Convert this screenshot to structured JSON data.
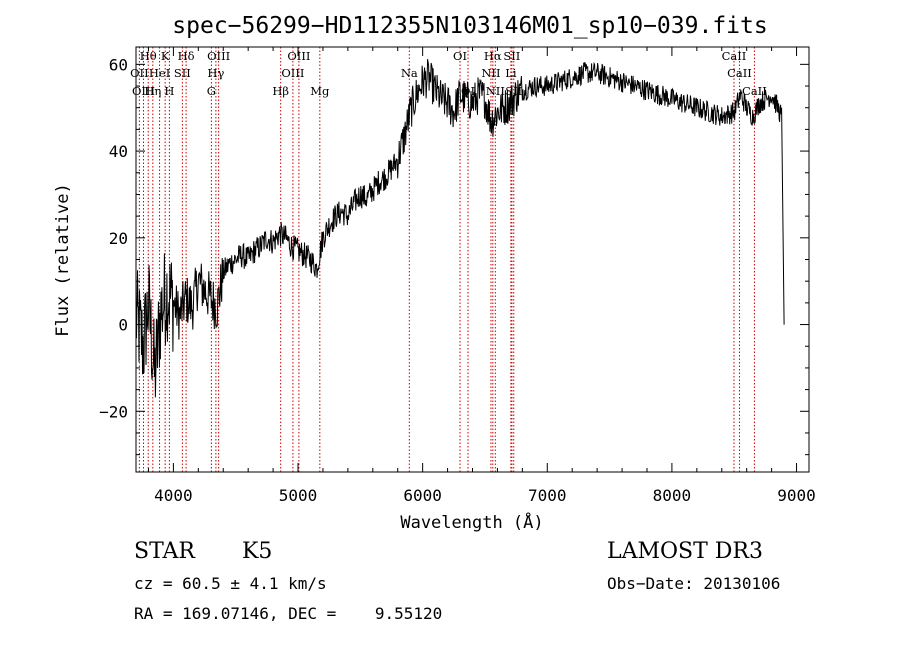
{
  "chart_data": {
    "type": "line",
    "title": "spec−56299−HD112355N103146M01_sp10−039.fits",
    "xlabel": "Wavelength (Å)",
    "ylabel": "Flux (relative)",
    "xlim": [
      3700,
      9100
    ],
    "ylim": [
      -34,
      64
    ],
    "xticks": [
      4000,
      5000,
      6000,
      7000,
      8000,
      9000
    ],
    "xtick_labels": [
      "4000",
      "5000",
      "6000",
      "7000",
      "8000",
      "9000"
    ],
    "yticks": [
      -20,
      0,
      20,
      40,
      60
    ],
    "ytick_labels": [
      "−20",
      "0",
      "20",
      "40",
      "60"
    ],
    "grid": false,
    "series": [
      {
        "x": [
          3700,
          3760,
          3800,
          3850,
          3900,
          3950,
          4000,
          4050,
          4100,
          4150,
          4200,
          4250,
          4300,
          4350,
          4400,
          4450,
          4500,
          4550,
          4600,
          4650,
          4700,
          4750,
          4800,
          4850,
          4900,
          4950,
          5000,
          5050,
          5100,
          5150,
          5200,
          5250,
          5300,
          5350,
          5400,
          5450,
          5500,
          5550,
          5600,
          5650,
          5700,
          5750,
          5800,
          5850,
          5900,
          5950,
          6000,
          6050,
          6100,
          6150,
          6200,
          6250,
          6300,
          6350,
          6400,
          6450,
          6500,
          6550,
          6600,
          6650,
          6700,
          6750,
          6800,
          6900,
          7000,
          7100,
          7200,
          7300,
          7400,
          7500,
          7600,
          7700,
          7800,
          7900,
          8000,
          8100,
          8200,
          8300,
          8400,
          8500,
          8550,
          8600,
          8650,
          8700,
          8750,
          8800,
          8850,
          8880,
          8900
        ],
        "y": [
          2,
          -5,
          5,
          -12,
          3,
          8,
          5,
          2,
          6,
          4,
          10,
          8,
          6,
          4,
          12,
          14,
          15,
          16,
          15,
          17,
          18,
          20,
          19,
          21,
          20,
          18,
          17,
          16,
          15,
          13,
          20,
          23,
          25,
          26,
          25,
          28,
          30,
          29,
          31,
          33,
          34,
          36,
          38,
          43,
          49,
          53,
          56,
          57,
          54,
          52,
          51,
          49,
          53,
          52,
          51,
          53,
          52,
          47,
          49,
          50,
          51,
          53,
          54,
          55,
          55,
          56,
          57,
          58,
          58,
          57,
          56,
          55,
          54,
          53,
          52,
          51,
          50,
          49,
          48,
          49,
          53,
          50,
          48,
          51,
          52,
          53,
          50,
          48,
          0
        ]
      }
    ],
    "spectral_lines": [
      {
        "label": "Hθ",
        "x": 3798,
        "row": 0
      },
      {
        "label": "K",
        "x": 3934,
        "row": 0
      },
      {
        "label": "Hδ",
        "x": 4102,
        "row": 0
      },
      {
        "label": "OIII",
        "x": 4363,
        "row": 0
      },
      {
        "label": "OIII",
        "x": 5007,
        "row": 0
      },
      {
        "label": "OI",
        "x": 6300,
        "row": 0
      },
      {
        "label": "Hα",
        "x": 6563,
        "row": 0
      },
      {
        "label": "SII",
        "x": 6716,
        "row": 0
      },
      {
        "label": "CaII",
        "x": 8498,
        "row": 0
      },
      {
        "label": "OII",
        "x": 3727,
        "row": 1
      },
      {
        "label": "HeI",
        "x": 3889,
        "row": 1
      },
      {
        "label": "SII",
        "x": 4072,
        "row": 1
      },
      {
        "label": "Hγ",
        "x": 4341,
        "row": 1
      },
      {
        "label": "OIII",
        "x": 4959,
        "row": 1
      },
      {
        "label": "Na",
        "x": 5893,
        "row": 1
      },
      {
        "label": "NII",
        "x": 6548,
        "row": 1
      },
      {
        "label": "Li",
        "x": 6708,
        "row": 1
      },
      {
        "label": "CaII",
        "x": 8542,
        "row": 1
      },
      {
        "label": "OIII",
        "x": 3760,
        "row": 2
      },
      {
        "label": "Hη",
        "x": 3835,
        "row": 2
      },
      {
        "label": "H",
        "x": 3968,
        "row": 2
      },
      {
        "label": "G",
        "x": 4305,
        "row": 2
      },
      {
        "label": "Hβ",
        "x": 4861,
        "row": 2
      },
      {
        "label": "Mg",
        "x": 5175,
        "row": 2
      },
      {
        "label": "OI",
        "x": 6364,
        "row": 2
      },
      {
        "label": "NII",
        "x": 6583,
        "row": 2
      },
      {
        "label": "SII",
        "x": 6731,
        "row": 2
      },
      {
        "label": "CaII",
        "x": 8662,
        "row": 2
      }
    ]
  },
  "info": {
    "object_class": "STAR",
    "subclass": "K5",
    "survey": "LAMOST DR3",
    "redshift_line": "cz = 60.5 ± 4.1 km/s",
    "obs_date_line": "Obs−Date: 20130106",
    "coords_line": "RA = 169.07146, DEC =    9.55120"
  },
  "colors": {
    "spectrum": "#000000",
    "line_markers": "#cc0000",
    "background": "#ffffff"
  }
}
